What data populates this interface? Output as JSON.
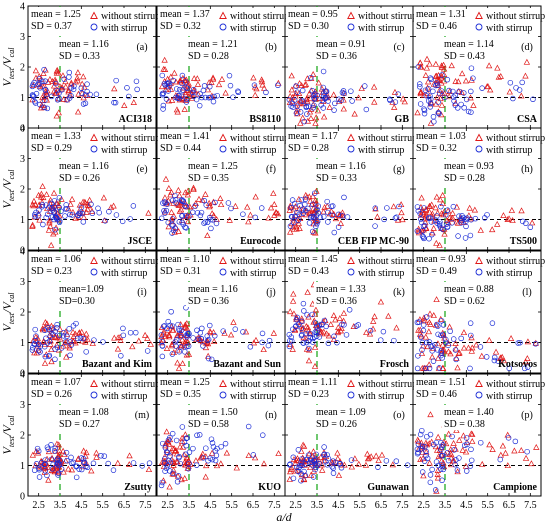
{
  "figure": {
    "xlabel": "a/d",
    "ylabel_main": "V",
    "ylabel_num_sub": "test",
    "ylabel_den_sub": "cal",
    "ylabel_sep": "/"
  },
  "chart_data": {
    "type": "scatter",
    "layout": "4x4 grid of panels",
    "x_range": [
      2.0,
      8.0
    ],
    "y_range": [
      0,
      4
    ],
    "x_ticks": [
      "2.5",
      "3.5",
      "4.5",
      "5.5",
      "6.5",
      "7.5"
    ],
    "y_ticks": [
      "0",
      "1",
      "2",
      "3",
      "4"
    ],
    "reference_line_y": 1.0,
    "vertical_line_x": 3.5,
    "colors": {
      "without_stirrup": "#e01818",
      "with_stirrup": "#1a2bd6",
      "ad_line": "#22aa22"
    },
    "legend": {
      "without": "without stirrup",
      "with": "with stirrup"
    },
    "panels": [
      {
        "tag": "(a)",
        "code": "ACI318",
        "label_pos": "bottom-right",
        "legend_pos": "top-right",
        "mean_without": "1.25",
        "sd_without": "0.37",
        "mean_with": "1.16",
        "sd_with": "0.33"
      },
      {
        "tag": "(b)",
        "code": "BS8110",
        "label_pos": "bottom-right",
        "legend_pos": "top-right",
        "mean_without": "1.37",
        "sd_without": "0.32",
        "mean_with": "1.21",
        "sd_with": "0.28"
      },
      {
        "tag": "(c)",
        "code": "GB",
        "label_pos": "bottom-right",
        "legend_pos": "top-right",
        "mean_without": "0.95",
        "sd_without": "0.30",
        "mean_with": "0.91",
        "sd_with": "0.36"
      },
      {
        "tag": "(d)",
        "code": "CSA",
        "label_pos": "bottom-right",
        "legend_pos": "top-right",
        "mean_without": "1.31",
        "sd_without": "0.46",
        "mean_with": "1.14",
        "sd_with": "0.43"
      },
      {
        "tag": "(e)",
        "code": "JSCE",
        "label_pos": "bottom-right",
        "legend_pos": "top-right",
        "mean_without": "1.33",
        "sd_without": "0.29",
        "mean_with": "1.16",
        "sd_with": "0.26"
      },
      {
        "tag": "(f)",
        "code": "Eurocode",
        "label_pos": "bottom-right",
        "legend_pos": "top-right",
        "mean_without": "1.41",
        "sd_without": "0.44",
        "mean_with": "1.25",
        "sd_with": "0.35"
      },
      {
        "tag": "(g)",
        "code": "CEB FIP MC-90",
        "label_pos": "bottom-right",
        "legend_pos": "top-right",
        "mean_without": "1.17",
        "sd_without": "0.28",
        "mean_with": "1.16",
        "sd_with": "0.33"
      },
      {
        "tag": "(h)",
        "code": "TS500",
        "label_pos": "bottom-right",
        "legend_pos": "top-right",
        "mean_without": "1.03",
        "sd_without": "0.32",
        "mean_with": "0.93",
        "sd_with": "0.28"
      },
      {
        "tag": "(i)",
        "code": "Bazant and Kim",
        "label_pos": "bottom-right",
        "legend_pos": "top-right",
        "mean_without": "1.06",
        "sd_without": "0.23",
        "mean_with": "1.09",
        "sd_with": "0.30",
        "mean_with_raw": "mean=1.09",
        "sd_with_raw": "SD=0.30"
      },
      {
        "tag": "(j)",
        "code": "Bazant and Sun",
        "label_pos": "bottom-right",
        "legend_pos": "top-right",
        "mean_without": "1.10",
        "sd_without": "0.31",
        "mean_with": "1.16",
        "sd_with": "0.36"
      },
      {
        "tag": "(k)",
        "code": "Frosch",
        "label_pos": "bottom-right",
        "legend_pos": "top-right",
        "mean_without": "1.45",
        "sd_without": "0.43",
        "mean_with": "1.33",
        "sd_with": "0.36"
      },
      {
        "tag": "(l)",
        "code": "Kotsovos",
        "label_pos": "bottom-right",
        "legend_pos": "top-right",
        "mean_without": "0.93",
        "sd_without": "0.49",
        "mean_with": "0.88",
        "sd_with": "0.62"
      },
      {
        "tag": "(m)",
        "code": "Zsutty",
        "label_pos": "bottom-right",
        "legend_pos": "top-right",
        "mean_without": "1.07",
        "sd_without": "0.26",
        "mean_with": "1.08",
        "sd_with": "0.27"
      },
      {
        "tag": "(n)",
        "code": "KUO",
        "label_pos": "bottom-right",
        "legend_pos": "top-right",
        "mean_without": "1.25",
        "sd_without": "0.35",
        "mean_with": "1.50",
        "sd_with": "0.58"
      },
      {
        "tag": "(o)",
        "code": "Gunawan",
        "label_pos": "bottom-right",
        "legend_pos": "top-right",
        "mean_without": "1.11",
        "sd_without": "0.23",
        "mean_with": "1.09",
        "sd_with": "0.26"
      },
      {
        "tag": "(p)",
        "code": "Campione",
        "label_pos": "bottom-right",
        "legend_pos": "top-right",
        "mean_without": "1.51",
        "sd_without": "0.46",
        "mean_with": "1.40",
        "sd_with": "0.38"
      }
    ]
  }
}
